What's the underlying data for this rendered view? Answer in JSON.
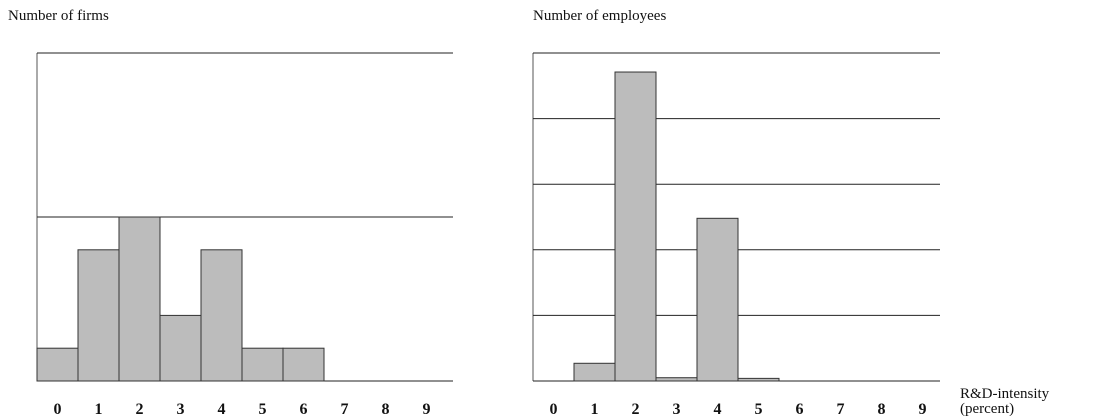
{
  "chart_data": [
    {
      "type": "bar",
      "title": "Number of firms",
      "categories": [
        "0",
        "1",
        "2",
        "3",
        "4",
        "5",
        "6",
        "7",
        "8",
        "9"
      ],
      "values": [
        1,
        4,
        5,
        2,
        4,
        1,
        1,
        0,
        0,
        0
      ],
      "color": "#bcbcbc",
      "ylim": [
        0,
        10
      ],
      "yticks": [
        0,
        5,
        10
      ],
      "grid": true
    },
    {
      "type": "bar",
      "title": "Number of employees",
      "x_label": [
        "R&D-intensity",
        "(percent)"
      ],
      "categories": [
        "0",
        "1",
        "2",
        "3",
        "4",
        "5",
        "6",
        "7",
        "8",
        "9"
      ],
      "values": [
        0,
        0.27,
        4.71,
        0.05,
        2.48,
        0.04,
        0,
        0,
        0,
        0
      ],
      "color": "#bcbcbc",
      "ylim": [
        0,
        5
      ],
      "yticks": [
        0,
        1,
        2,
        3,
        4,
        5
      ],
      "grid": true
    }
  ]
}
